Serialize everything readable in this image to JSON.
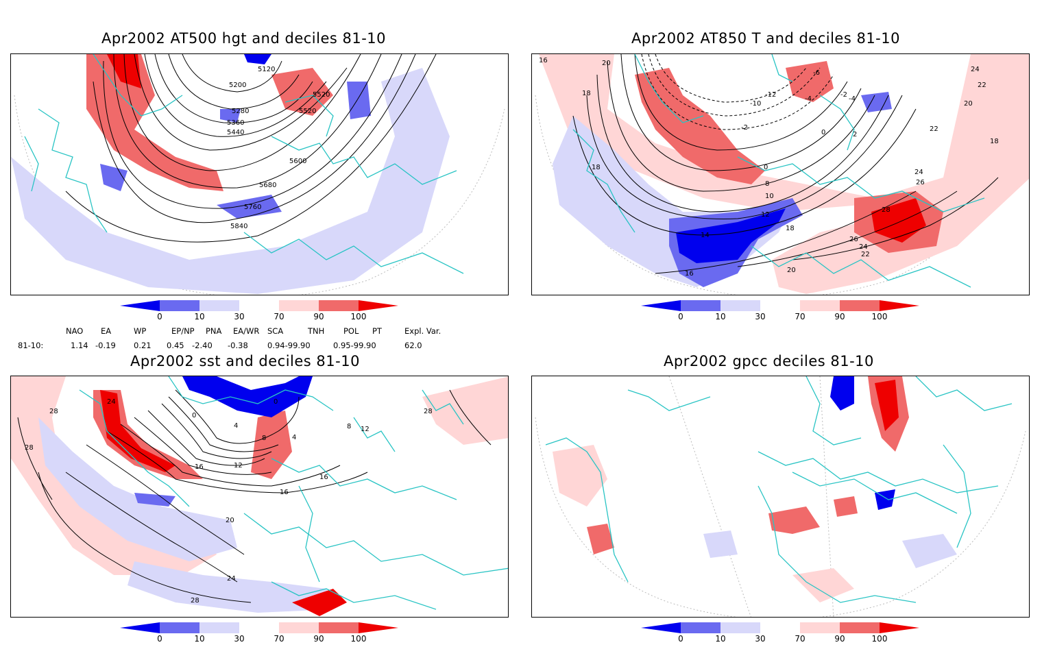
{
  "panels": [
    {
      "title": "Apr2002 AT500 hgt and deciles 81-10",
      "contour_labels": [
        "5120",
        "5200",
        "5280",
        "5360",
        "5440",
        "5520",
        "5520",
        "5600",
        "5680",
        "5760",
        "5840"
      ]
    },
    {
      "title": "Apr2002 AT850 T and deciles 81-10",
      "contour_labels": [
        "16",
        "20",
        "18",
        "18",
        "-6",
        "-4",
        "-2",
        "-12",
        "-10",
        "-2",
        "0",
        "2",
        "-4",
        "22",
        "24",
        "22",
        "20",
        "18",
        "0",
        "8",
        "10",
        "12",
        "14",
        "16",
        "18",
        "24",
        "26",
        "28",
        "26",
        "24",
        "22",
        "20"
      ]
    },
    {
      "title": "Apr2002 sst and deciles 81-10",
      "contour_labels": [
        "24",
        "28",
        "28",
        "0",
        "0",
        "4",
        "8",
        "4",
        "12",
        "16",
        "16",
        "16",
        "20",
        "24",
        "28",
        "28",
        "8",
        "12"
      ]
    },
    {
      "title": "Apr2002 gpcc deciles 81-10",
      "contour_labels": []
    }
  ],
  "colorbar": {
    "ticks": [
      "0",
      "10",
      "30",
      "70",
      "90",
      "100"
    ],
    "colors": [
      "#0000ee",
      "#6a6af0",
      "#d8d8fa",
      "#ffffff",
      "#ffd6d6",
      "#f06a6a",
      "#ee0000"
    ]
  },
  "indices": {
    "headers": [
      "NAO",
      "EA",
      "WP",
      "EP/NP",
      "PNA",
      "EA/WR",
      "SCA",
      "TNH",
      "POL",
      "PT",
      "Expl. Var."
    ],
    "row_label": "81-10:",
    "values": [
      "1.14",
      "-0.19",
      "0.21",
      "0.45",
      "-2.40",
      "-0.38",
      "0.94-99.90",
      "",
      "0.95-99.90",
      "",
      "62.0"
    ]
  },
  "colors": {
    "coast": "#29c4c4",
    "strong_pos": "#ee0000",
    "mid_pos": "#f06a6a",
    "light_pos": "#ffd6d6",
    "light_neg": "#d8d8fa",
    "mid_neg": "#6a6af0",
    "strong_neg": "#0000ee"
  }
}
